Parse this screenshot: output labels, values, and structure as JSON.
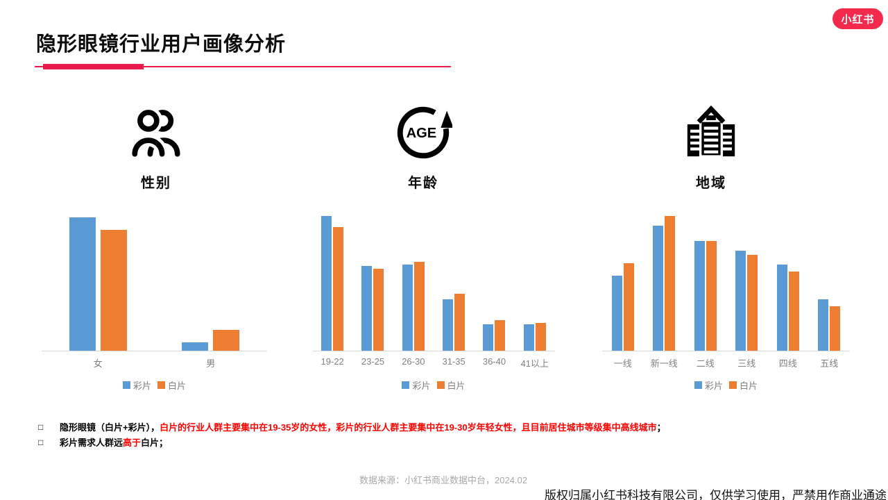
{
  "page": {
    "title": "隐形眼镜行业用户画像分析",
    "logo_text": "小红书"
  },
  "colors": {
    "accent_red": "#e91c4b",
    "logo_red": "#f42a4d",
    "series_blue": "#5b9bd5",
    "series_orange": "#ed7d31",
    "highlight_text_red": "#ff0000",
    "axis_gray": "#808080"
  },
  "sections": [
    {
      "label": "性别",
      "icon": "people-icon"
    },
    {
      "label": "年龄",
      "icon": "age-cycle-icon"
    },
    {
      "label": "地域",
      "icon": "city-buildings-icon"
    }
  ],
  "legend": {
    "labels": [
      "彩片",
      "白片"
    ],
    "colors": [
      "#5b9bd5",
      "#ed7d31"
    ]
  },
  "bullet_marker": "□",
  "chart_data": [
    {
      "type": "bar",
      "title": "性别",
      "categories": [
        "女",
        "男"
      ],
      "series": [
        {
          "name": "彩片",
          "values": [
            96,
            6
          ]
        },
        {
          "name": "白片",
          "values": [
            87,
            15
          ]
        }
      ],
      "ylim": [
        0,
        100
      ],
      "grid": false,
      "legend_position": "bottom",
      "note": "relative scale, no value axis shown"
    },
    {
      "type": "bar",
      "title": "年龄",
      "categories": [
        "19-22",
        "23-25",
        "26-30",
        "31-35",
        "36-40",
        "41以上"
      ],
      "series": [
        {
          "name": "彩片",
          "values": [
            97,
            61,
            62,
            37,
            19,
            19
          ]
        },
        {
          "name": "白片",
          "values": [
            89,
            59,
            64,
            41,
            22,
            20
          ]
        }
      ],
      "ylim": [
        0,
        100
      ],
      "grid": false,
      "legend_position": "bottom",
      "note": "relative scale, no value axis shown"
    },
    {
      "type": "bar",
      "title": "地域",
      "categories": [
        "一线",
        "新一线",
        "二线",
        "三线",
        "四线",
        "五线"
      ],
      "series": [
        {
          "name": "彩片",
          "values": [
            54,
            90,
            79,
            72,
            62,
            37
          ]
        },
        {
          "name": "白片",
          "values": [
            63,
            97,
            79,
            69,
            57,
            32
          ]
        }
      ],
      "ylim": [
        0,
        100
      ],
      "grid": false,
      "legend_position": "bottom",
      "note": "relative scale, no value axis shown"
    }
  ],
  "bullets": [
    {
      "segments": [
        {
          "text": "隐形眼镜（白片+彩片），",
          "color": "black"
        },
        {
          "text": "白片的行业人群主要集中在19-35岁的女性，彩片的行业人群主要集中在19-30岁年轻女性，且目前居住城市等级集中高线城市",
          "color": "red"
        },
        {
          "text": "；",
          "color": "black"
        }
      ]
    },
    {
      "segments": [
        {
          "text": "彩片需求人群远",
          "color": "black"
        },
        {
          "text": "高于",
          "color": "red"
        },
        {
          "text": "白片；",
          "color": "black"
        }
      ]
    }
  ],
  "footer": {
    "source": "数据来源：小红书商业数据中台，2024.02",
    "copyright": "版权归属小红书科技有限公司，仅供学习使用，严禁用作商业通途"
  }
}
